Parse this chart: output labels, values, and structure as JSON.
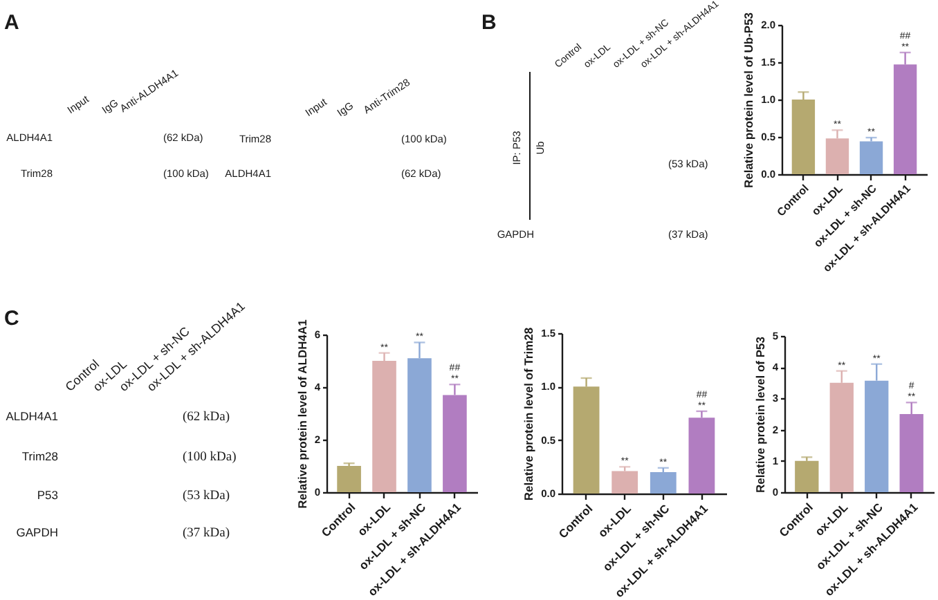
{
  "chart_data": [
    {
      "type": "other",
      "title": "A",
      "annotations": [
        "Input",
        "IgG",
        "Anti-ALDH4A1",
        "ALDH4A1",
        "(62 kDa)",
        "Trim28",
        "(100 kDa)",
        "Input",
        "IgG",
        "Anti-Trim28",
        "Trim28",
        "(100 kDa)",
        "ALDH4A1",
        "(62 kDa)"
      ]
    },
    {
      "type": "other",
      "title": "B",
      "annotations": [
        "Control",
        "ox-LDL",
        "ox-LDL + sh-NC",
        "ox-LDL + sh-ALDH4A1",
        "IP: P53",
        "Ub",
        "(53 kDa)",
        "GAPDH",
        "(37 kDa)"
      ]
    },
    {
      "type": "bar",
      "categories": [
        "Control",
        "ox-LDL",
        "ox-LDL + sh-NC",
        "ox-LDL + sh-ALDH4A1"
      ],
      "values": [
        1.0,
        0.48,
        0.44,
        1.47
      ],
      "colors": [
        "#b5a970",
        "#dcb0af",
        "#8ba8d6",
        "#b17dc1"
      ],
      "errors": [
        [
          1.0,
          1.1
        ],
        [
          0.48,
          0.59
        ],
        [
          0.44,
          0.49
        ],
        [
          1.47,
          1.63
        ]
      ],
      "ylabel": "Relative protein level of Ub-P53",
      "ylim": [
        0,
        2
      ],
      "yticks": [
        {
          "value": 0,
          "label": "0.0"
        },
        {
          "value": 0.5,
          "label": "0.5"
        },
        {
          "value": 1,
          "label": "1.0"
        },
        {
          "value": 1.5,
          "label": "1.5"
        },
        {
          "value": 2,
          "label": "2.0"
        }
      ],
      "annotations": [
        {
          "text": "**",
          "x": "ox-LDL",
          "y": 0.59
        },
        {
          "text": "**",
          "x": "ox-LDL + sh-NC",
          "y": 0.49
        },
        {
          "text": "**",
          "x": "ox-LDL + sh-ALDH4A1",
          "y": 1.63
        },
        {
          "text": "##",
          "x": "ox-LDL + sh-ALDH4A1",
          "y": 1.63
        }
      ]
    },
    {
      "type": "other",
      "title": "C",
      "annotations": [
        "Control",
        "ox-LDL",
        "ox-LDL + sh-NC",
        "ox-LDL + sh-ALDH4A1",
        "ALDH4A1",
        "(62 kDa)",
        "Trim28",
        "(100 kDa)",
        "P53",
        "(53 kDa)",
        "GAPDH",
        "(37 kDa)"
      ]
    },
    {
      "type": "bar",
      "categories": [
        "Control",
        "ox-LDL",
        "ox-LDL + sh-NC",
        "ox-LDL + sh-ALDH4A1"
      ],
      "values": [
        1.0,
        5.0,
        5.1,
        3.7
      ],
      "colors": [
        "#b5a970",
        "#dcb0af",
        "#8ba8d6",
        "#b17dc1"
      ],
      "errors": [
        [
          1.0,
          1.1
        ],
        [
          5.0,
          5.3
        ],
        [
          5.1,
          5.7
        ],
        [
          3.7,
          4.1
        ]
      ],
      "ylabel": "Relative protein level of ALDH4A1",
      "ylim": [
        0,
        6
      ],
      "yticks": [
        0,
        2,
        4,
        6
      ],
      "annotations": [
        {
          "text": "**",
          "x": "ox-LDL",
          "y": 5.3
        },
        {
          "text": "**",
          "x": "ox-LDL + sh-NC",
          "y": 5.7
        },
        {
          "text": "**",
          "x": "ox-LDL + sh-ALDH4A1",
          "y": 4.1
        },
        {
          "text": "##",
          "x": "ox-LDL + sh-ALDH4A1",
          "y": 4.1
        }
      ]
    },
    {
      "type": "bar",
      "categories": [
        "Control",
        "ox-LDL",
        "ox-LDL + sh-NC",
        "ox-LDL + sh-ALDH4A1"
      ],
      "values": [
        1.0,
        0.21,
        0.2,
        0.71
      ],
      "colors": [
        "#b5a970",
        "#dcb0af",
        "#8ba8d6",
        "#b17dc1"
      ],
      "errors": [
        [
          1.0,
          1.08
        ],
        [
          0.21,
          0.25
        ],
        [
          0.2,
          0.24
        ],
        [
          0.71,
          0.77
        ]
      ],
      "ylabel": "Relative protein level of Trim28",
      "ylim": [
        0,
        1.5
      ],
      "yticks": [
        {
          "value": 0,
          "label": "0.0"
        },
        {
          "value": 0.5,
          "label": "0.5"
        },
        {
          "value": 1,
          "label": "1.0"
        },
        {
          "value": 1.5,
          "label": "1.5"
        }
      ],
      "annotations": [
        {
          "text": "**",
          "x": "ox-LDL",
          "y": 0.25
        },
        {
          "text": "**",
          "x": "ox-LDL + sh-NC",
          "y": 0.24
        },
        {
          "text": "**",
          "x": "ox-LDL + sh-ALDH4A1",
          "y": 0.77
        },
        {
          "text": "##",
          "x": "ox-LDL + sh-ALDH4A1",
          "y": 0.77
        }
      ]
    },
    {
      "type": "bar",
      "categories": [
        "Control",
        "ox-LDL",
        "ox-LDL + sh-NC",
        "ox-LDL + sh-ALDH4A1"
      ],
      "values": [
        1.0,
        3.5,
        3.57,
        2.5
      ],
      "colors": [
        "#b5a970",
        "#dcb0af",
        "#8ba8d6",
        "#b17dc1"
      ],
      "errors": [
        [
          1.0,
          1.12
        ],
        [
          3.5,
          3.88
        ],
        [
          3.57,
          4.1
        ],
        [
          2.5,
          2.87
        ]
      ],
      "ylabel": "Relative protein level of P53",
      "ylim": [
        0,
        5
      ],
      "yticks": [
        0,
        1,
        2,
        3,
        4,
        5
      ],
      "annotations": [
        {
          "text": "**",
          "x": "ox-LDL",
          "y": 3.88
        },
        {
          "text": "**",
          "x": "ox-LDL + sh-NC",
          "y": 4.1
        },
        {
          "text": "**",
          "x": "ox-LDL + sh-ALDH4A1",
          "y": 2.87
        },
        {
          "text": "#",
          "x": "ox-LDL + sh-ALDH4A1",
          "y": 2.87
        }
      ]
    }
  ]
}
